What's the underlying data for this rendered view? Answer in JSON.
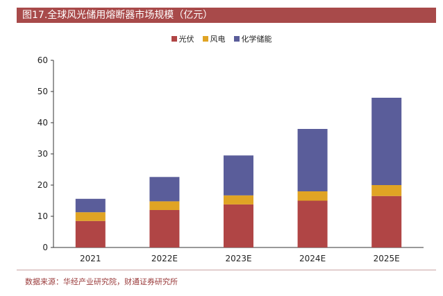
{
  "header_clip": "",
  "figure_title": "图17.全球风光储用熔断器市场规模（亿元）",
  "source_note": "数据来源：华经产业研究院，财通证券研究所",
  "chart_data": {
    "type": "bar",
    "stacked": true,
    "categories": [
      "2021",
      "2022E",
      "2023E",
      "2024E",
      "2025E"
    ],
    "series": [
      {
        "name": "光伏",
        "color": "#b04545",
        "values": [
          8.5,
          12.0,
          13.8,
          15.0,
          16.5
        ]
      },
      {
        "name": "风电",
        "color": "#e0a424",
        "values": [
          2.8,
          2.8,
          2.9,
          3.0,
          3.5
        ]
      },
      {
        "name": "化学储能",
        "color": "#5a5d9a",
        "values": [
          4.3,
          7.8,
          12.8,
          20.0,
          28.0
        ]
      }
    ],
    "yticks": [
      0,
      10,
      20,
      30,
      40,
      50,
      60
    ],
    "ylim": [
      0,
      60
    ],
    "legend_position": "top-center",
    "grid": false
  }
}
